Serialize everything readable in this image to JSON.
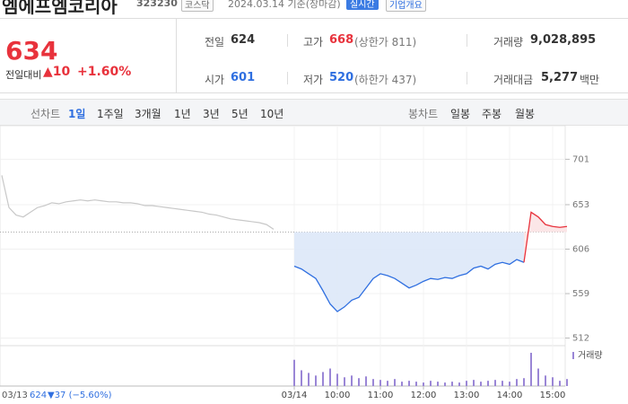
{
  "header": {
    "name": "엠에프엠코리아",
    "code": "323230",
    "market": "코스닥",
    "date_note": "2024.03.14 기준(장마감)",
    "realtime_button": "실시간",
    "company_button": "기업개요"
  },
  "quote": {
    "price": 634,
    "change_label": "전일대비",
    "change": "▲10",
    "change_pct": "+1.60%"
  },
  "stats": {
    "prev_close_label": "전일",
    "prev_close": 624,
    "high_label": "고가",
    "high": 668,
    "upper_limit": "(상한가 811)",
    "volume_label": "거래량",
    "volume": "9,028,895",
    "open_label": "시가",
    "open": 601,
    "low_label": "저가",
    "low": 520,
    "lower_limit": "(하한가 437)",
    "amount_label": "거래대금",
    "amount": "5,277",
    "amount_unit": "백만"
  },
  "line_tabs": {
    "label": "선차트",
    "items": [
      "1일",
      "1주일",
      "3개월",
      "1년",
      "3년",
      "5년",
      "10년"
    ]
  },
  "candle_tabs": {
    "label": "봉차트",
    "items": [
      "일봉",
      "주봉",
      "월봉"
    ]
  },
  "chart_data": {
    "type": "line",
    "x": [
      "09:00",
      "09:10",
      "09:20",
      "09:30",
      "09:40",
      "09:50",
      "10:00",
      "10:10",
      "10:20",
      "10:30",
      "10:40",
      "10:50",
      "11:00",
      "11:10",
      "11:20",
      "11:30",
      "11:40",
      "11:50",
      "12:00",
      "12:10",
      "12:20",
      "12:30",
      "12:40",
      "12:50",
      "13:00",
      "13:10",
      "13:20",
      "13:30",
      "13:40",
      "13:50",
      "14:00",
      "14:10",
      "14:20",
      "14:30",
      "14:40",
      "14:50",
      "15:00",
      "15:10",
      "15:20"
    ],
    "values": [
      588,
      585,
      580,
      575,
      562,
      548,
      540,
      545,
      552,
      555,
      565,
      575,
      580,
      578,
      575,
      570,
      565,
      568,
      572,
      575,
      574,
      576,
      575,
      578,
      580,
      586,
      588,
      585,
      590,
      592,
      590,
      595,
      592,
      645,
      640,
      632,
      630,
      629,
      630
    ],
    "prev_values": [
      684,
      650,
      642,
      640,
      645,
      650,
      652,
      655,
      654,
      656,
      657,
      658,
      657,
      658,
      657,
      656,
      656,
      655,
      655,
      654,
      652,
      652,
      651,
      650,
      649,
      648,
      647,
      646,
      645,
      643,
      642,
      640,
      638,
      637,
      636,
      635,
      634,
      632,
      627
    ],
    "volume": [
      300000,
      180000,
      150000,
      120000,
      160000,
      200000,
      140000,
      100000,
      120000,
      90000,
      110000,
      80000,
      70000,
      60000,
      80000,
      50000,
      60000,
      50000,
      40000,
      60000,
      50000,
      40000,
      50000,
      40000,
      60000,
      70000,
      50000,
      60000,
      70000,
      60000,
      50000,
      80000,
      90000,
      380000,
      200000,
      120000,
      100000,
      60000,
      80000
    ],
    "volume_label": "거래량",
    "vlim": [
      0,
      400000
    ],
    "ylim": [
      504,
      727
    ],
    "yticks": [
      701,
      653,
      606,
      559,
      512
    ],
    "xticks": [
      {
        "value": "09:00",
        "label": "03/14"
      },
      "10:00",
      "11:00",
      "12:00",
      "13:00",
      "14:00",
      "15:00"
    ],
    "prev_label": {
      "date": "03/13",
      "close": 624,
      "change": "▼37 (−5.60%)"
    },
    "up_color": "#e8323c",
    "down_color": "#2f6fe0",
    "prev_color": "#c8c8c8",
    "fill_color": "#dde8f8",
    "volume_color": "#9a86d6",
    "grid": true
  }
}
